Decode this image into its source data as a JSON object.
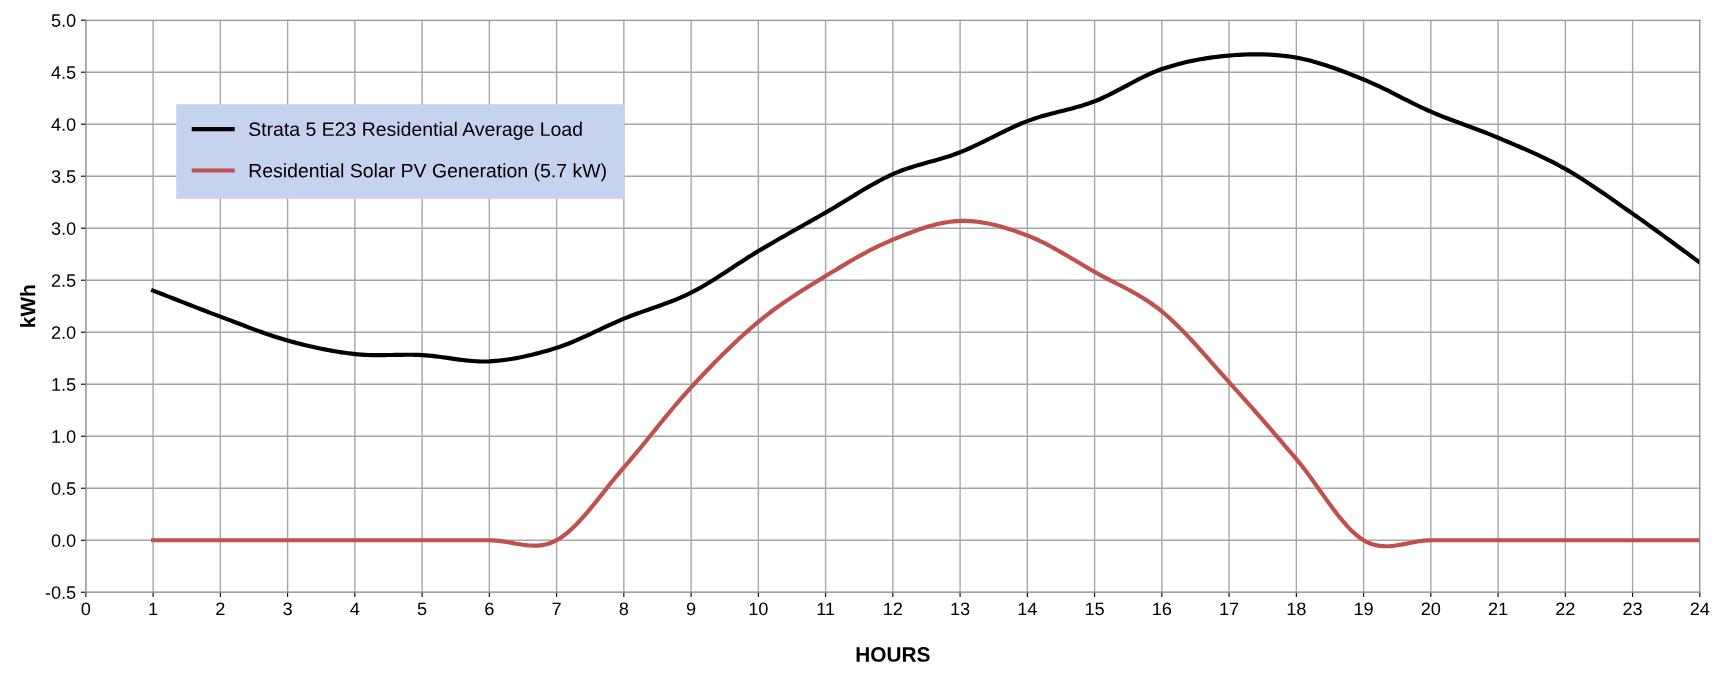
{
  "chart_data": {
    "type": "line",
    "xlabel": "HOURS",
    "ylabel": "kWh",
    "x": [
      1,
      2,
      3,
      4,
      5,
      6,
      7,
      8,
      9,
      10,
      11,
      12,
      13,
      14,
      15,
      16,
      17,
      18,
      19,
      20,
      21,
      22,
      23,
      24
    ],
    "series": [
      {
        "name": "Strata 5 E23 Residential Average Load",
        "color": "#000000",
        "values": [
          2.4,
          2.15,
          1.92,
          1.79,
          1.78,
          1.72,
          1.85,
          2.13,
          2.38,
          2.78,
          3.15,
          3.52,
          3.73,
          4.03,
          4.22,
          4.53,
          4.66,
          4.64,
          4.43,
          4.12,
          3.87,
          3.57,
          3.14,
          2.67
        ]
      },
      {
        "name": "Residential Solar PV Generation (5.7 kW)",
        "color": "#c0504d",
        "values": [
          0,
          0,
          0,
          0,
          0,
          0,
          0,
          0.7,
          1.47,
          2.1,
          2.54,
          2.89,
          3.07,
          2.93,
          2.58,
          2.2,
          1.52,
          0.78,
          0,
          0,
          0,
          0,
          0,
          0
        ]
      }
    ],
    "xlim": [
      0,
      24
    ],
    "xticks": [
      0,
      1,
      2,
      3,
      4,
      5,
      6,
      7,
      8,
      9,
      10,
      11,
      12,
      13,
      14,
      15,
      16,
      17,
      18,
      19,
      20,
      21,
      22,
      23,
      24
    ],
    "ylim": [
      -0.5,
      5
    ],
    "yticks": [
      {
        "value": -0.5,
        "label": "-0.5"
      },
      {
        "value": 0,
        "label": "0.0"
      },
      {
        "value": 0.5,
        "label": "0.5"
      },
      {
        "value": 1,
        "label": "1.0"
      },
      {
        "value": 1.5,
        "label": "1.5"
      },
      {
        "value": 2,
        "label": "2.0"
      },
      {
        "value": 2.5,
        "label": "2.5"
      },
      {
        "value": 3,
        "label": "3.0"
      },
      {
        "value": 3.5,
        "label": "3.5"
      },
      {
        "value": 4,
        "label": "4.0"
      },
      {
        "value": 4.5,
        "label": "4.5"
      },
      {
        "value": 5,
        "label": "5.0"
      }
    ],
    "grid": true,
    "legend": "top left",
    "marker": "none",
    "line_style": "solid"
  }
}
